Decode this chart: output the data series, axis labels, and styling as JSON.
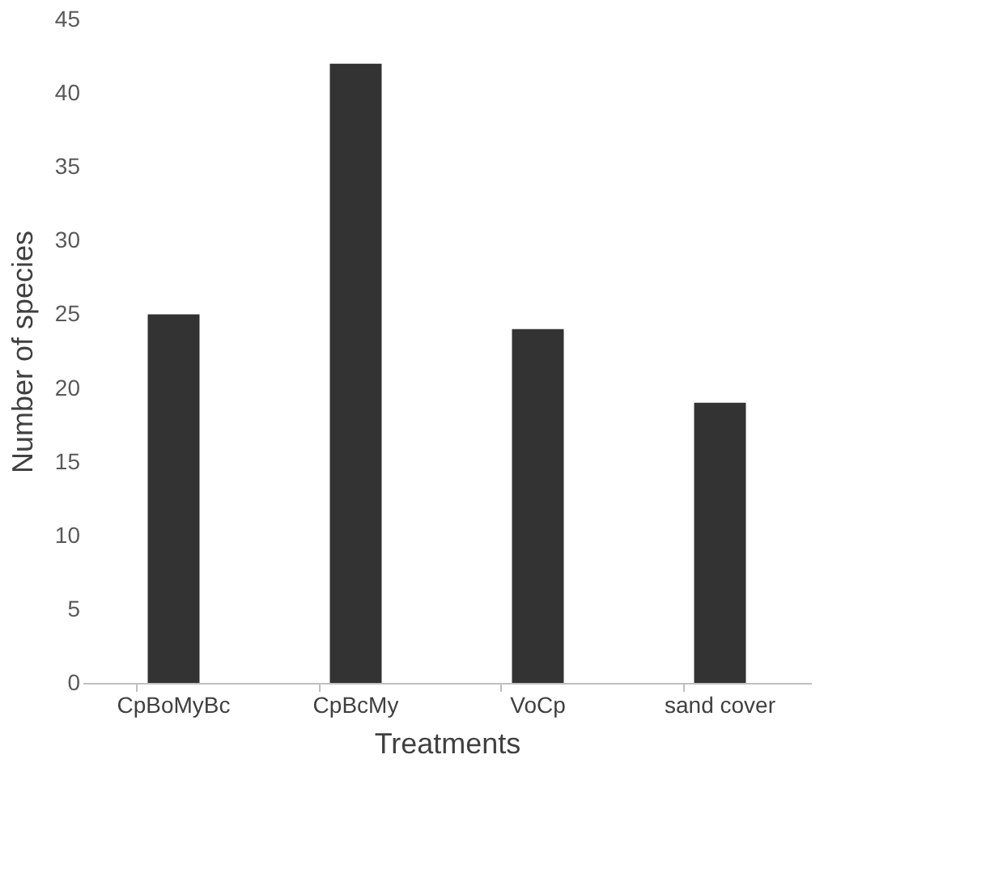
{
  "chart_data": {
    "type": "bar",
    "xlabel": "Treatments",
    "ylabel": "Number  of species",
    "categories": [
      "CpBoMyBc",
      "CpBcMy",
      "VoCp",
      "sand cover"
    ],
    "values": [
      25,
      42,
      24,
      19
    ],
    "color": "#333333",
    "ylim": [
      0,
      45
    ],
    "yticks": [
      0,
      5,
      10,
      15,
      20,
      25,
      30,
      35,
      40,
      45
    ],
    "grid": false
  }
}
